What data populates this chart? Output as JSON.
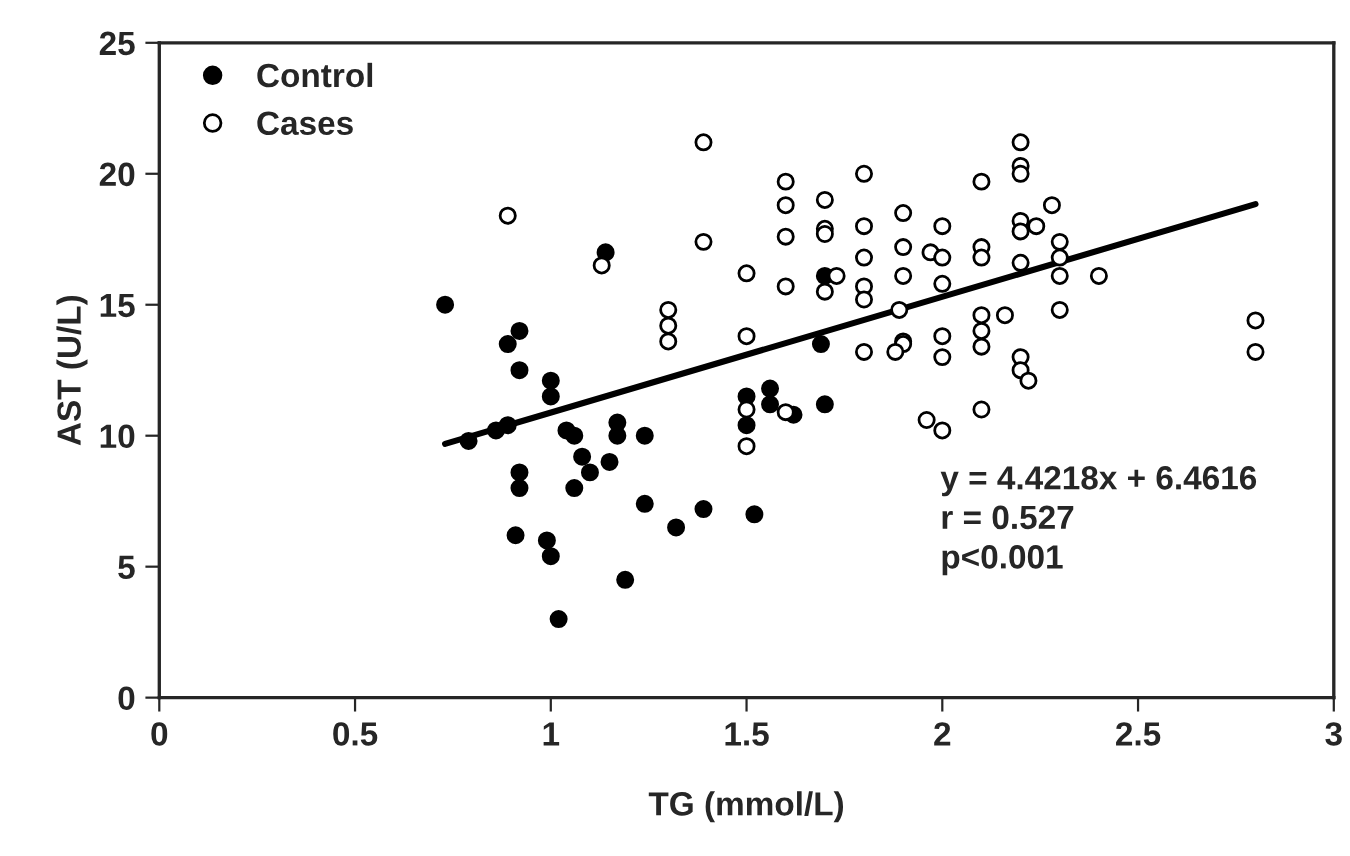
{
  "chart_data": {
    "type": "scatter",
    "xlabel": "TG (mmol/L)",
    "ylabel": "AST (U/L)",
    "xlim": [
      0,
      3
    ],
    "xticks": [
      0,
      0.5,
      1,
      1.5,
      2,
      2.5,
      3
    ],
    "ylim": [
      0,
      25
    ],
    "yticks": [
      0,
      5,
      10,
      15,
      20,
      25
    ],
    "grid": false,
    "legend": "top left",
    "series": [
      {
        "name": "Control",
        "marker": "circle",
        "color": "#000000",
        "x": [
          0.73,
          0.79,
          0.86,
          0.89,
          0.89,
          0.92,
          0.92,
          0.92,
          0.92,
          0.91,
          0.99,
          1.0,
          1.02,
          1.0,
          1.0,
          1.04,
          1.06,
          1.08,
          1.1,
          1.06,
          1.14,
          1.17,
          1.17,
          1.15,
          1.24,
          1.24,
          1.19,
          1.32,
          1.39,
          1.52,
          1.5,
          1.5,
          1.7,
          1.69,
          1.7,
          1.56,
          1.56,
          1.62
        ],
        "values": [
          15.0,
          9.8,
          10.2,
          10.4,
          13.5,
          14.0,
          12.5,
          8.6,
          8.0,
          6.2,
          6.0,
          5.4,
          3.0,
          12.1,
          11.5,
          10.2,
          10.0,
          9.2,
          8.6,
          8.0,
          17.0,
          10.5,
          10.0,
          9.0,
          10.0,
          7.4,
          4.5,
          6.5,
          7.2,
          7.0,
          11.5,
          10.4,
          16.1,
          13.5,
          11.2,
          11.8,
          11.2,
          10.8
        ]
      },
      {
        "name": "Cases",
        "marker": "circle",
        "color": "#ffffff",
        "x": [
          0.89,
          1.13,
          1.3,
          1.3,
          1.3,
          1.39,
          1.39,
          1.5,
          1.5,
          1.5,
          1.5,
          1.6,
          1.6,
          1.6,
          1.6,
          1.7,
          1.7,
          1.7,
          1.7,
          1.73,
          1.6,
          1.8,
          1.8,
          1.8,
          1.8,
          1.8,
          1.8,
          1.9,
          1.9,
          1.9,
          1.89,
          1.9,
          1.9,
          1.88,
          1.97,
          2.0,
          2.0,
          2.0,
          2.0,
          2.0,
          1.96,
          2.0,
          2.1,
          2.1,
          2.1,
          2.1,
          2.1,
          2.1,
          2.1,
          2.16,
          2.2,
          2.2,
          2.2,
          2.2,
          2.2,
          2.24,
          2.2,
          2.2,
          2.2,
          2.22,
          2.28,
          2.3,
          2.3,
          2.3,
          2.3,
          2.4,
          2.8,
          2.8
        ],
        "values": [
          18.4,
          16.5,
          14.8,
          14.2,
          13.6,
          17.4,
          21.2,
          16.2,
          13.8,
          11.0,
          9.6,
          19.7,
          18.8,
          17.6,
          15.7,
          19.0,
          17.9,
          17.7,
          15.5,
          16.1,
          10.9,
          20.0,
          18.0,
          16.8,
          15.7,
          15.2,
          13.2,
          18.5,
          17.2,
          16.1,
          14.8,
          13.6,
          13.5,
          13.2,
          17.0,
          18.0,
          16.8,
          15.8,
          13.8,
          13.0,
          10.6,
          10.2,
          19.7,
          17.2,
          16.8,
          14.6,
          14.0,
          13.4,
          11.0,
          14.6,
          21.2,
          20.3,
          20.0,
          18.2,
          17.8,
          18.0,
          16.6,
          13.0,
          12.5,
          12.1,
          18.8,
          17.4,
          16.8,
          16.1,
          14.8,
          16.1,
          14.4,
          13.2
        ]
      },
      {
        "type": "line",
        "marker": "none",
        "line_style": "solid",
        "color": "#000000",
        "x": [
          0.73,
          2.8
        ],
        "values": [
          9.69,
          18.84
        ]
      }
    ],
    "annotations": [
      "y = 4.4218x + 6.4616\nr = 0.527\np<0.001"
    ]
  }
}
